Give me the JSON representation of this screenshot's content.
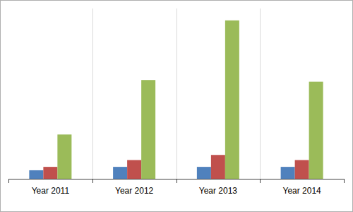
{
  "chart_data": {
    "type": "bar",
    "categories": [
      "Year 2011",
      "Year 2012",
      "Year 2013",
      "Year 2014"
    ],
    "series": [
      {
        "color": "#4f81bd",
        "values": [
          5,
          7,
          7,
          7
        ]
      },
      {
        "color": "#c0504d",
        "values": [
          7,
          11,
          14,
          11
        ]
      },
      {
        "color": "#9bbb59",
        "values": [
          26,
          58,
          93,
          57
        ]
      }
    ],
    "ylim": [
      0,
      100
    ],
    "tick_labels": "x"
  }
}
